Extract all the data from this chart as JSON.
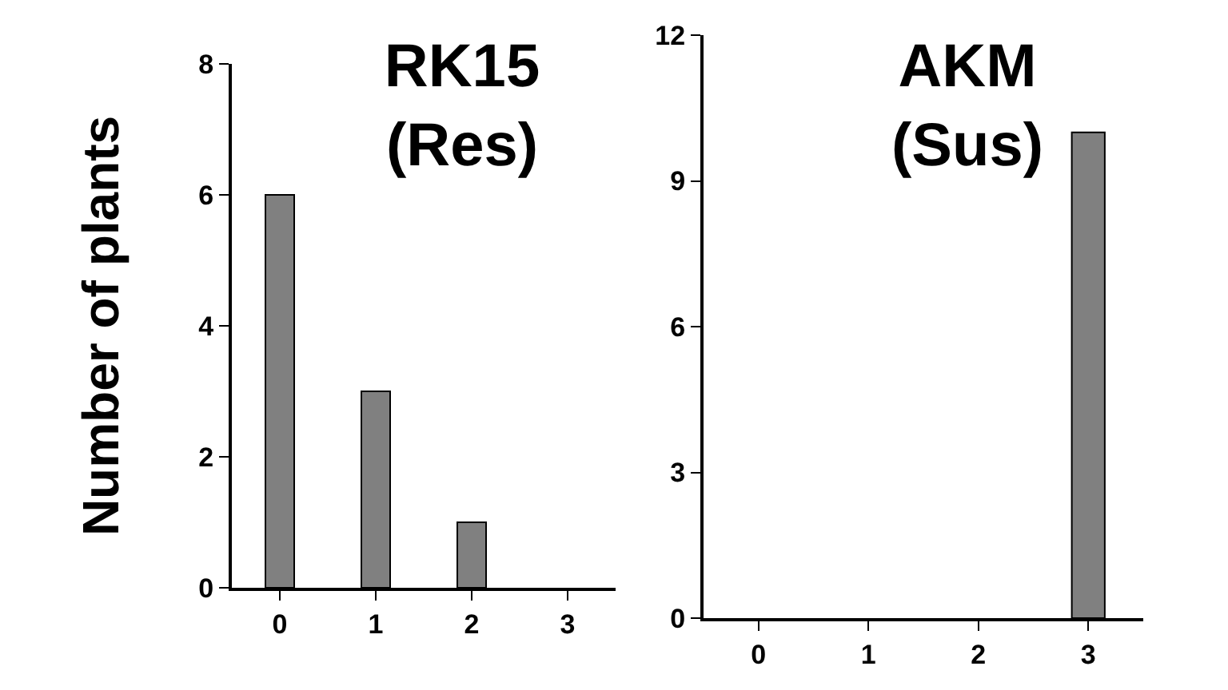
{
  "chart_data": [
    {
      "type": "bar",
      "title": "RK15\n(Res)",
      "ylabel": "Number of plants",
      "categories": [
        "0",
        "1",
        "2",
        "3"
      ],
      "values": [
        6,
        3,
        1,
        0
      ],
      "color": "#808080",
      "ylim": [
        0,
        8
      ],
      "yticks": [
        0,
        2,
        4,
        6,
        8
      ],
      "grid": false,
      "legend": false
    },
    {
      "type": "bar",
      "title": "AKM\n(Sus)",
      "categories": [
        "0",
        "1",
        "2",
        "3"
      ],
      "values": [
        0,
        0,
        0,
        10
      ],
      "color": "#808080",
      "ylim": [
        0,
        12
      ],
      "yticks": [
        0,
        3,
        6,
        9,
        12
      ],
      "grid": false,
      "legend": false
    }
  ]
}
